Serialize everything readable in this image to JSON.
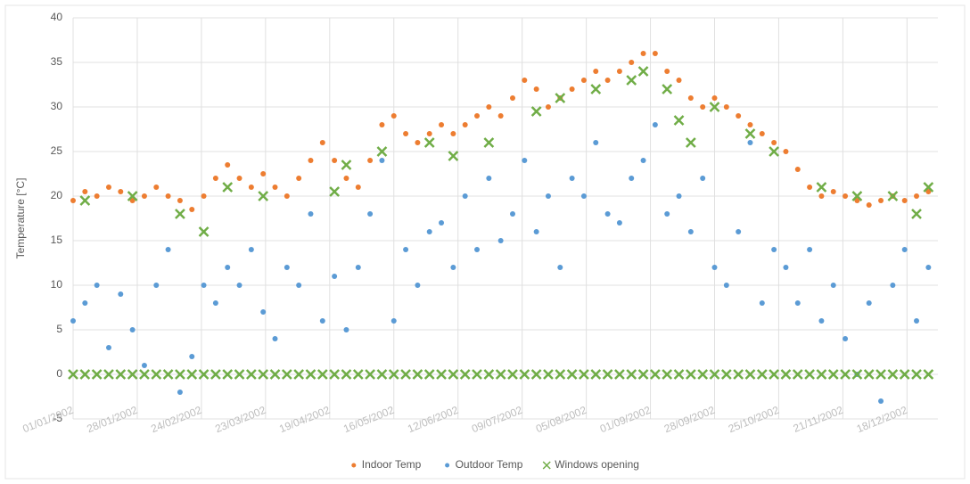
{
  "chart_data": {
    "type": "scatter",
    "y_label": "Temperature [°C]",
    "ylim": [
      -5,
      40
    ],
    "yticks": [
      -5,
      0,
      5,
      10,
      15,
      20,
      25,
      30,
      35,
      40
    ],
    "xlim": [
      "01/01/2002",
      "31/12/2002"
    ],
    "xticks": [
      "01/01/2002",
      "28/01/2002",
      "24/02/2002",
      "23/03/2002",
      "19/04/2002",
      "16/05/2002",
      "12/06/2002",
      "09/07/2002",
      "05/08/2002",
      "01/09/2002",
      "28/09/2002",
      "25/10/2002",
      "21/11/2002",
      "18/12/2002"
    ],
    "grid": true,
    "legend": "bottom",
    "series": [
      {
        "name": "Indoor Temp",
        "color": "#ed7d31",
        "marker": "circle",
        "x": [
          "01/01/2002",
          "06/01/2002",
          "11/01/2002",
          "16/01/2002",
          "21/01/2002",
          "26/01/2002",
          "31/01/2002",
          "05/02/2002",
          "10/02/2002",
          "15/02/2002",
          "20/02/2002",
          "25/02/2002",
          "02/03/2002",
          "07/03/2002",
          "12/03/2002",
          "17/03/2002",
          "22/03/2002",
          "27/03/2002",
          "01/04/2002",
          "06/04/2002",
          "11/04/2002",
          "16/04/2002",
          "21/04/2002",
          "26/04/2002",
          "01/05/2002",
          "06/05/2002",
          "11/05/2002",
          "16/05/2002",
          "21/05/2002",
          "26/05/2002",
          "31/05/2002",
          "05/06/2002",
          "10/06/2002",
          "15/06/2002",
          "20/06/2002",
          "25/06/2002",
          "30/06/2002",
          "05/07/2002",
          "10/07/2002",
          "15/07/2002",
          "20/07/2002",
          "25/07/2002",
          "30/07/2002",
          "04/08/2002",
          "09/08/2002",
          "14/08/2002",
          "19/08/2002",
          "24/08/2002",
          "29/08/2002",
          "03/09/2002",
          "08/09/2002",
          "13/09/2002",
          "18/09/2002",
          "23/09/2002",
          "28/09/2002",
          "03/10/2002",
          "08/10/2002",
          "13/10/2002",
          "18/10/2002",
          "23/10/2002",
          "28/10/2002",
          "02/11/2002",
          "07/11/2002",
          "12/11/2002",
          "17/11/2002",
          "22/11/2002",
          "27/11/2002",
          "02/12/2002",
          "07/12/2002",
          "12/12/2002",
          "17/12/2002",
          "22/12/2002",
          "27/12/2002"
        ],
        "values": [
          19.5,
          20.5,
          20,
          21,
          20.5,
          19.5,
          20,
          21,
          20,
          19.5,
          18.5,
          20,
          22,
          23.5,
          22,
          21,
          22.5,
          21,
          20,
          22,
          24,
          26,
          24,
          22,
          21,
          24,
          28,
          29,
          27,
          26,
          27,
          28,
          27,
          28,
          29,
          30,
          29,
          31,
          33,
          32,
          30,
          31,
          32,
          33,
          34,
          33,
          34,
          35,
          36,
          36,
          34,
          33,
          31,
          30,
          31,
          30,
          29,
          28,
          27,
          26,
          25,
          23,
          21,
          20,
          20.5,
          20,
          19.5,
          19,
          19.5,
          20,
          19.5,
          20,
          20.5
        ]
      },
      {
        "name": "Outdoor Temp",
        "color": "#5b9bd5",
        "marker": "circle",
        "x": [
          "01/01/2002",
          "06/01/2002",
          "11/01/2002",
          "16/01/2002",
          "21/01/2002",
          "26/01/2002",
          "31/01/2002",
          "05/02/2002",
          "10/02/2002",
          "15/02/2002",
          "20/02/2002",
          "25/02/2002",
          "02/03/2002",
          "07/03/2002",
          "12/03/2002",
          "17/03/2002",
          "22/03/2002",
          "27/03/2002",
          "01/04/2002",
          "06/04/2002",
          "11/04/2002",
          "16/04/2002",
          "21/04/2002",
          "26/04/2002",
          "01/05/2002",
          "06/05/2002",
          "11/05/2002",
          "16/05/2002",
          "21/05/2002",
          "26/05/2002",
          "31/05/2002",
          "05/06/2002",
          "10/06/2002",
          "15/06/2002",
          "20/06/2002",
          "25/06/2002",
          "30/06/2002",
          "05/07/2002",
          "10/07/2002",
          "15/07/2002",
          "20/07/2002",
          "25/07/2002",
          "30/07/2002",
          "04/08/2002",
          "09/08/2002",
          "14/08/2002",
          "19/08/2002",
          "24/08/2002",
          "29/08/2002",
          "03/09/2002",
          "08/09/2002",
          "13/09/2002",
          "18/09/2002",
          "23/09/2002",
          "28/09/2002",
          "03/10/2002",
          "08/10/2002",
          "13/10/2002",
          "18/10/2002",
          "23/10/2002",
          "28/10/2002",
          "02/11/2002",
          "07/11/2002",
          "12/11/2002",
          "17/11/2002",
          "22/11/2002",
          "27/11/2002",
          "02/12/2002",
          "07/12/2002",
          "12/12/2002",
          "17/12/2002",
          "22/12/2002",
          "27/12/2002"
        ],
        "values": [
          6,
          8,
          10,
          3,
          9,
          5,
          1,
          10,
          14,
          -2,
          2,
          10,
          8,
          12,
          10,
          14,
          7,
          4,
          12,
          10,
          18,
          6,
          11,
          5,
          12,
          18,
          24,
          6,
          14,
          10,
          16,
          17,
          12,
          20,
          14,
          22,
          15,
          18,
          24,
          16,
          20,
          12,
          22,
          20,
          26,
          18,
          17,
          22,
          24,
          28,
          18,
          20,
          16,
          22,
          12,
          10,
          16,
          26,
          8,
          14,
          12,
          8,
          14,
          6,
          10,
          4,
          0,
          8,
          -3,
          10,
          14,
          6,
          12
        ]
      },
      {
        "name": "Windows opening",
        "color": "#70ad47",
        "marker": "x",
        "x": [
          "01/01/2002",
          "06/01/2002",
          "11/01/2002",
          "16/01/2002",
          "21/01/2002",
          "26/01/2002",
          "31/01/2002",
          "05/02/2002",
          "10/02/2002",
          "15/02/2002",
          "20/02/2002",
          "25/02/2002",
          "02/03/2002",
          "07/03/2002",
          "12/03/2002",
          "17/03/2002",
          "22/03/2002",
          "27/03/2002",
          "01/04/2002",
          "06/04/2002",
          "11/04/2002",
          "16/04/2002",
          "21/04/2002",
          "26/04/2002",
          "01/05/2002",
          "06/05/2002",
          "11/05/2002",
          "16/05/2002",
          "21/05/2002",
          "26/05/2002",
          "31/05/2002",
          "05/06/2002",
          "10/06/2002",
          "15/06/2002",
          "20/06/2002",
          "25/06/2002",
          "30/06/2002",
          "05/07/2002",
          "10/07/2002",
          "15/07/2002",
          "20/07/2002",
          "25/07/2002",
          "30/07/2002",
          "04/08/2002",
          "09/08/2002",
          "14/08/2002",
          "19/08/2002",
          "24/08/2002",
          "29/08/2002",
          "03/09/2002",
          "08/09/2002",
          "13/09/2002",
          "18/09/2002",
          "23/09/2002",
          "28/09/2002",
          "03/10/2002",
          "08/10/2002",
          "13/10/2002",
          "18/10/2002",
          "23/10/2002",
          "28/10/2002",
          "02/11/2002",
          "07/11/2002",
          "12/11/2002",
          "17/11/2002",
          "22/11/2002",
          "27/11/2002",
          "02/12/2002",
          "07/12/2002",
          "12/12/2002",
          "17/12/2002",
          "22/12/2002",
          "27/12/2002",
          "06/01/2002",
          "26/01/2002",
          "15/02/2002",
          "25/02/2002",
          "07/03/2002",
          "22/03/2002",
          "21/04/2002",
          "26/04/2002",
          "11/05/2002",
          "31/05/2002",
          "10/06/2002",
          "25/06/2002",
          "15/07/2002",
          "25/07/2002",
          "09/08/2002",
          "24/08/2002",
          "29/08/2002",
          "08/09/2002",
          "13/09/2002",
          "18/09/2002",
          "28/09/2002",
          "13/10/2002",
          "23/10/2002",
          "12/11/2002",
          "27/11/2002",
          "12/12/2002",
          "22/12/2002",
          "27/12/2002"
        ],
        "values": [
          0,
          0,
          0,
          0,
          0,
          0,
          0,
          0,
          0,
          0,
          0,
          0,
          0,
          0,
          0,
          0,
          0,
          0,
          0,
          0,
          0,
          0,
          0,
          0,
          0,
          0,
          0,
          0,
          0,
          0,
          0,
          0,
          0,
          0,
          0,
          0,
          0,
          0,
          0,
          0,
          0,
          0,
          0,
          0,
          0,
          0,
          0,
          0,
          0,
          0,
          0,
          0,
          0,
          0,
          0,
          0,
          0,
          0,
          0,
          0,
          0,
          0,
          0,
          0,
          0,
          0,
          0,
          0,
          0,
          0,
          0,
          0,
          0,
          19.5,
          20,
          18,
          16,
          21,
          20,
          20.5,
          23.5,
          25,
          26,
          24.5,
          26,
          29.5,
          31,
          32,
          33,
          34,
          32,
          28.5,
          26,
          30,
          27,
          25,
          21,
          20,
          20,
          18,
          21
        ]
      }
    ]
  }
}
